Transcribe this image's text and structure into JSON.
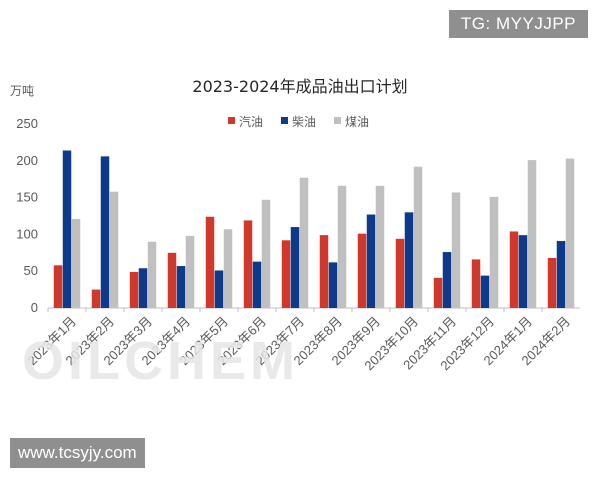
{
  "badges": {
    "tag": "TG: MYYJJPP",
    "site": "www.tcsyjy.com"
  },
  "watermark": "OILCHEM",
  "chart_data": {
    "type": "bar",
    "title": "2023-2024年成品油出口计划",
    "ylabel": "万吨",
    "xlabel": "",
    "ylim": [
      0,
      250
    ],
    "yticks": [
      0,
      50,
      100,
      150,
      200,
      250
    ],
    "legend_position": "top",
    "grid": false,
    "categories": [
      "2023年1月",
      "2023年2月",
      "2023年3月",
      "2023年4月",
      "2023年5月",
      "2023年6月",
      "2023年7月",
      "2023年8月",
      "2023年9月",
      "2023年10月",
      "2023年11月",
      "2023年12月",
      "2024年1月",
      "2024年2月"
    ],
    "series": [
      {
        "name": "汽油",
        "color": "#d0382b",
        "values": [
          58,
          25,
          49,
          75,
          124,
          119,
          92,
          99,
          101,
          94,
          41,
          66,
          104,
          68
        ]
      },
      {
        "name": "柴油",
        "color": "#0e3a8c",
        "values": [
          214,
          206,
          54,
          57,
          51,
          63,
          110,
          62,
          127,
          130,
          76,
          44,
          99,
          91
        ]
      },
      {
        "name": "煤油",
        "color": "#c0c0c0",
        "values": [
          121,
          158,
          90,
          98,
          107,
          147,
          177,
          166,
          166,
          192,
          157,
          151,
          201,
          203
        ]
      }
    ]
  }
}
